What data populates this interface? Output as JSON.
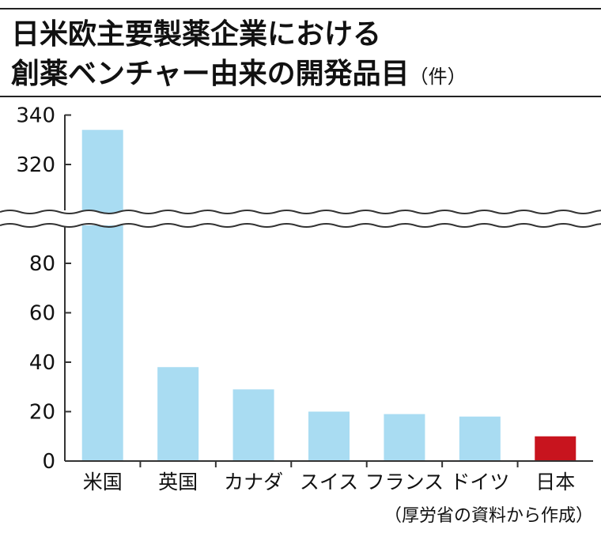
{
  "title": {
    "line1": "日米欧主要製薬企業における",
    "line2": "創薬ベンチャー由来の開発品目",
    "unit": "（件）"
  },
  "source": "（厚労省の資料から作成）",
  "colors": {
    "bar": "#a9dcf2",
    "highlight": "#c8141e",
    "axis": "#333333"
  },
  "chart_data": {
    "type": "bar",
    "categories": [
      "米国",
      "英国",
      "カナダ",
      "スイス",
      "フランス",
      "ドイツ",
      "日本"
    ],
    "values": [
      334,
      38,
      29,
      20,
      19,
      18,
      10
    ],
    "highlight_category": "日本",
    "y_lower_ticks": [
      0,
      20,
      40,
      60,
      80
    ],
    "y_upper_ticks": [
      320,
      340
    ],
    "y_lower_range": [
      0,
      96
    ],
    "y_upper_range": [
      314,
      340
    ],
    "axis_break": "wavy lines between 96 and 314",
    "grid": false,
    "legend": "none"
  }
}
